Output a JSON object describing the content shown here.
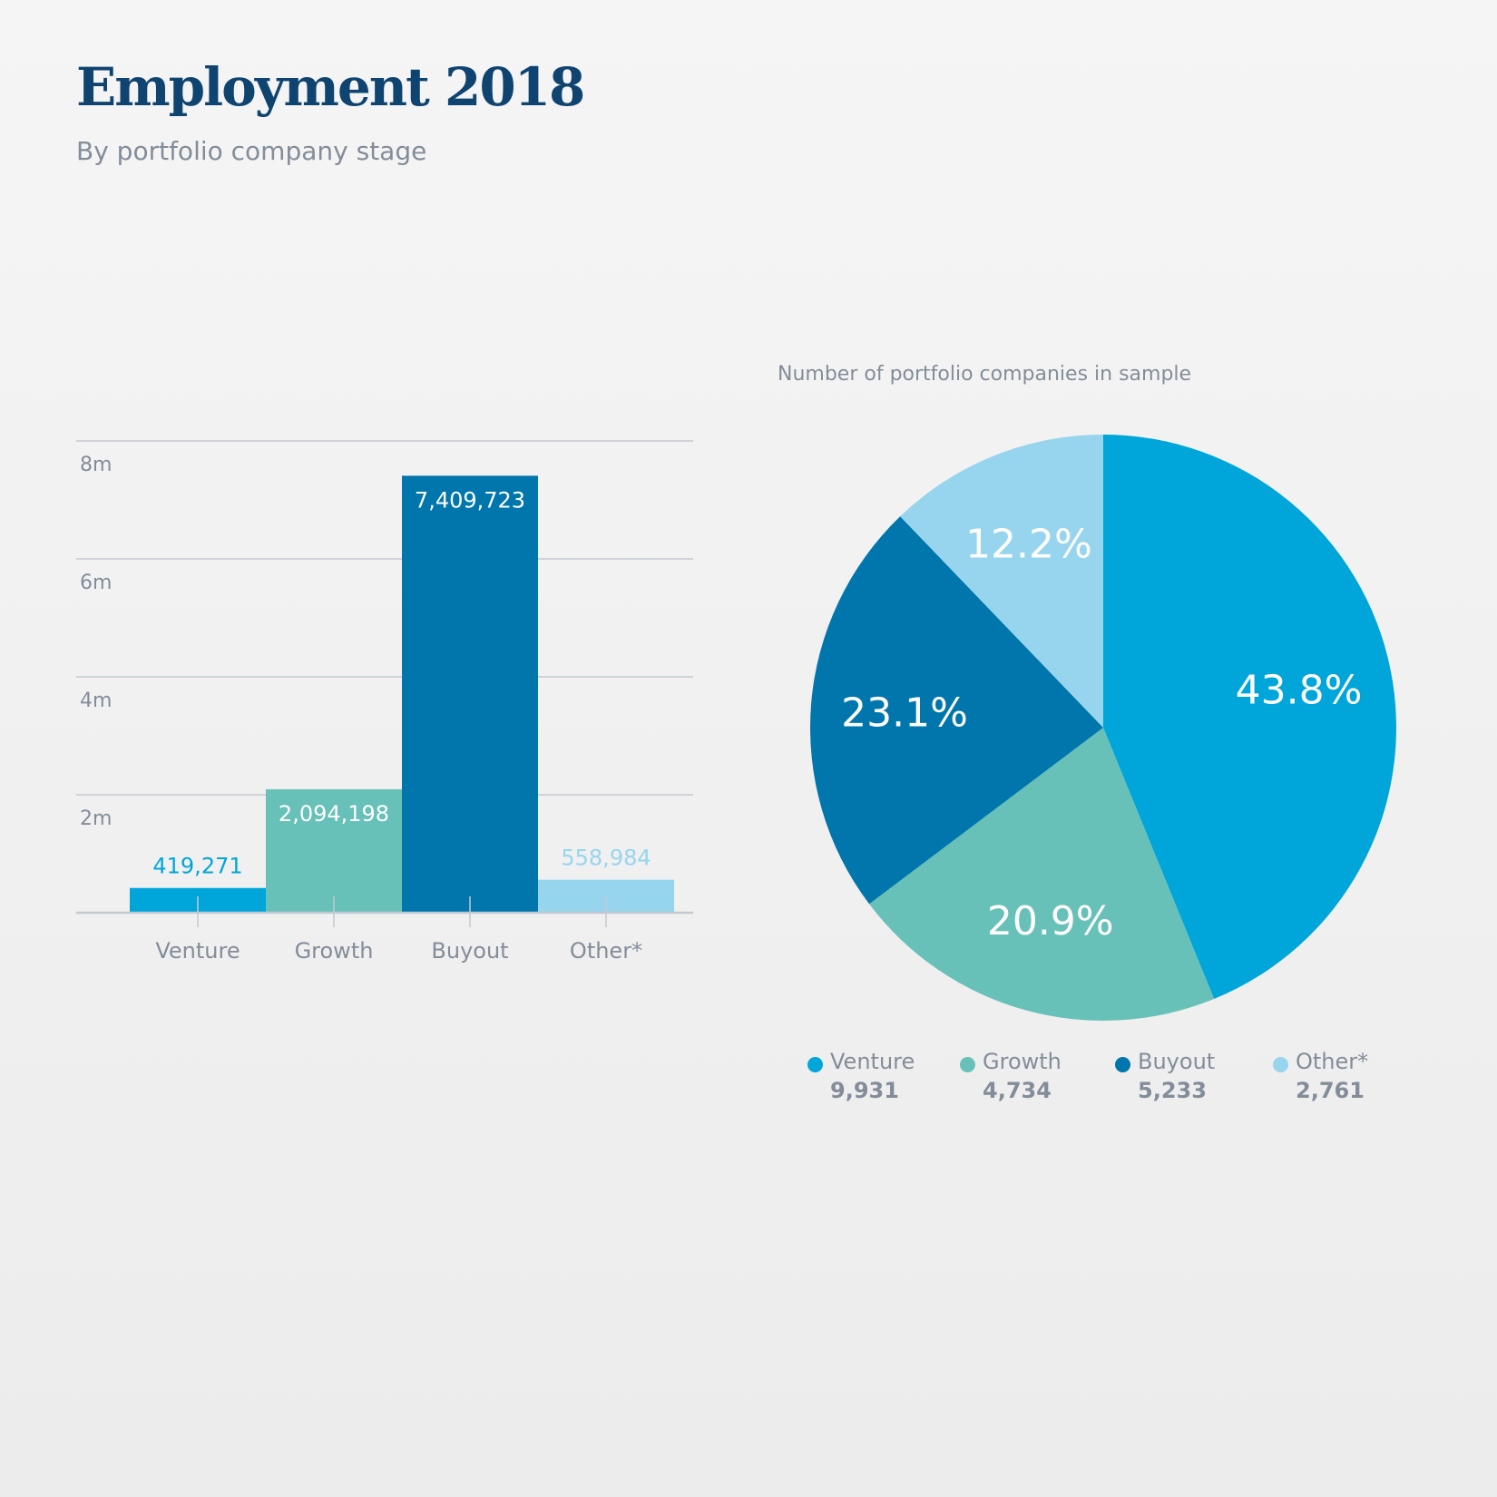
{
  "header": {
    "title": "Employment 2018",
    "subtitle": "By portfolio company stage"
  },
  "colors": {
    "venture": "#00a6d9",
    "growth": "#68c1b8",
    "buyout": "#0076ac",
    "other": "#97d5ee",
    "grid": "#c4c8d0",
    "axis_text": "#838d99",
    "title": "#0f4470"
  },
  "chart_data": [
    {
      "type": "bar",
      "title": "",
      "xlabel": "",
      "ylabel": "",
      "categories": [
        "Venture",
        "Growth",
        "Buyout",
        "Other*"
      ],
      "values": [
        419271,
        2094198,
        7409723,
        558984
      ],
      "value_labels": [
        "419,271",
        "2,094,198",
        "7,409,723",
        "558,984"
      ],
      "colors": [
        "#00a6d9",
        "#68c1b8",
        "#0076ac",
        "#97d5ee"
      ],
      "ylim": [
        0,
        8000000
      ],
      "yticks": [
        2000000,
        4000000,
        6000000,
        8000000
      ],
      "ytick_labels": [
        "2m",
        "4m",
        "6m",
        "8m"
      ],
      "grid": true
    },
    {
      "type": "pie",
      "title": "Number of portfolio companies in sample",
      "labels": [
        "Venture",
        "Growth",
        "Buyout",
        "Other*"
      ],
      "values": [
        9931,
        4734,
        5233,
        2761
      ],
      "count_labels": [
        "9,931",
        "4,734",
        "5,233",
        "2,761"
      ],
      "percent_labels": [
        "43.8%",
        "20.9%",
        "23.1%",
        "12.2%"
      ],
      "colors": [
        "#00a6d9",
        "#68c1b8",
        "#0076ac",
        "#97d5ee"
      ],
      "legend_position": "bottom"
    }
  ]
}
